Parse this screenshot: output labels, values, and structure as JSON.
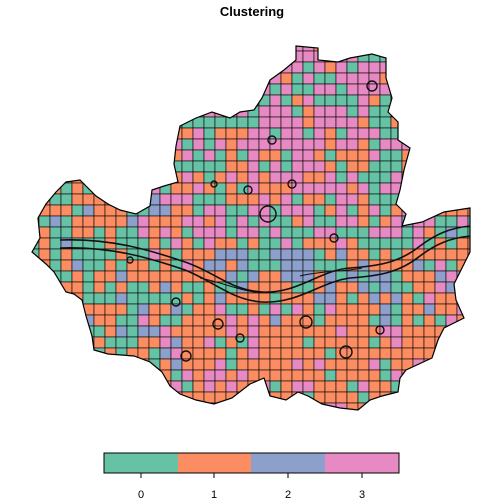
{
  "title": "Clustering",
  "palette": {
    "0": "#66c2a5",
    "1": "#fc8d62",
    "2": "#8da0cb",
    "3": "#e78ac3"
  },
  "legend": {
    "type": "color bar",
    "ticks": [
      "0",
      "1",
      "2",
      "3"
    ],
    "colors": [
      "#66c2a5",
      "#fc8d62",
      "#8da0cb",
      "#e78ac3"
    ]
  },
  "chart_data": {
    "type": "choropleth grid map",
    "title": "Clustering",
    "classes": [
      0,
      1,
      2,
      3
    ],
    "class_colors": [
      "#66c2a5",
      "#fc8d62",
      "#8da0cb",
      "#e78ac3"
    ],
    "grid_cells_colored_by_class": true,
    "overlay": "river and building outlines"
  }
}
